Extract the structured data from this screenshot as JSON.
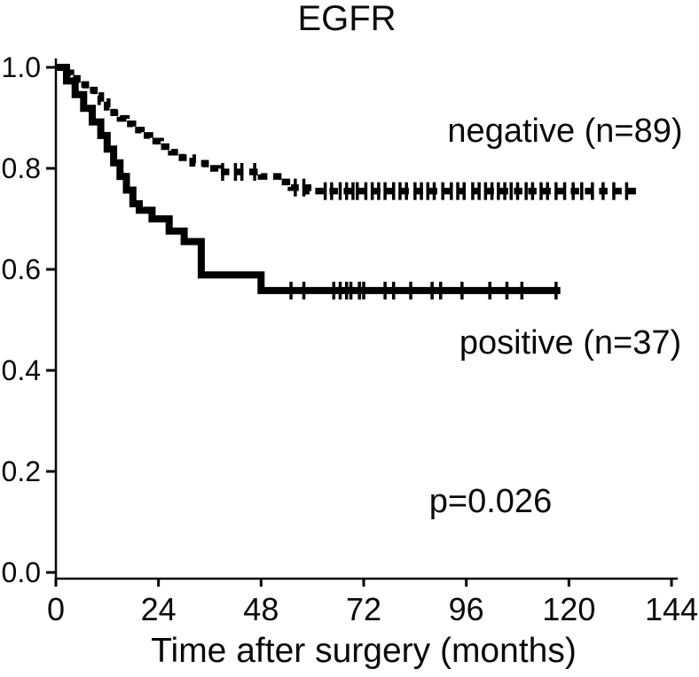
{
  "figure": {
    "title": "EGFR",
    "x_axis_label": "Time after surgery (months)",
    "p_value": "p=0.026"
  },
  "chart_data": {
    "type": "line",
    "subtype": "kaplan_meier_step",
    "title": "EGFR",
    "xlabel": "Time after surgery (months)",
    "ylabel": "",
    "xlim": [
      0,
      144
    ],
    "ylim": [
      0.0,
      1.0
    ],
    "xticks": [
      "0",
      "24",
      "48",
      "72",
      "96",
      "120",
      "144"
    ],
    "yticks": [
      "0.0",
      "0.2",
      "0.4",
      "0.6",
      "0.8",
      "1.0"
    ],
    "grid": false,
    "legend_position": "inline-annotations",
    "p_value_text": "p=0.026",
    "colors": {
      "line": "#000000",
      "text": "#0a0a0a",
      "background": "#ffffff"
    },
    "series": [
      {
        "name": "negative (n=89)",
        "line_style": "dashed",
        "steps": [
          [
            0,
            1.0
          ],
          [
            2,
            0.989
          ],
          [
            3.5,
            0.978
          ],
          [
            5,
            0.966
          ],
          [
            7,
            0.955
          ],
          [
            9,
            0.944
          ],
          [
            10.5,
            0.932
          ],
          [
            12,
            0.921
          ],
          [
            13.5,
            0.91
          ],
          [
            15,
            0.899
          ],
          [
            16.5,
            0.888
          ],
          [
            18,
            0.876
          ],
          [
            20,
            0.865
          ],
          [
            22,
            0.854
          ],
          [
            24.5,
            0.843
          ],
          [
            27,
            0.832
          ],
          [
            29.5,
            0.821
          ],
          [
            32,
            0.81
          ],
          [
            35,
            0.8
          ],
          [
            38,
            0.793
          ],
          [
            48,
            0.784
          ],
          [
            52,
            0.773
          ],
          [
            55,
            0.762
          ],
          [
            59,
            0.755
          ],
          [
            136,
            0.755
          ]
        ],
        "censor_times": [
          39,
          42,
          43.5,
          46.5,
          56,
          58,
          63,
          64.5,
          66.5,
          68,
          69.5,
          70.5,
          72.5,
          74,
          75.5,
          77,
          79,
          80.5,
          82,
          84,
          85.5,
          87,
          88.5,
          90.5,
          92.5,
          94,
          95.5,
          97.5,
          99,
          100.5,
          102,
          103.5,
          105,
          106.5,
          108,
          110,
          111.5,
          113.5,
          115,
          117,
          119,
          121,
          123,
          125.5,
          128,
          130.5,
          133.5
        ]
      },
      {
        "name": "positive (n=37)",
        "line_style": "solid",
        "steps": [
          [
            0,
            1.0
          ],
          [
            2.5,
            0.973
          ],
          [
            4.5,
            0.946
          ],
          [
            6.5,
            0.919
          ],
          [
            8.5,
            0.892
          ],
          [
            10.5,
            0.865
          ],
          [
            12,
            0.838
          ],
          [
            13.5,
            0.811
          ],
          [
            15,
            0.784
          ],
          [
            16.5,
            0.757
          ],
          [
            18,
            0.73
          ],
          [
            19.5,
            0.717
          ],
          [
            22.5,
            0.7
          ],
          [
            26.5,
            0.676
          ],
          [
            30,
            0.655
          ],
          [
            34,
            0.589
          ],
          [
            48,
            0.558
          ],
          [
            118,
            0.558
          ]
        ],
        "censor_times": [
          55,
          58,
          65,
          66.5,
          68,
          69,
          71,
          72,
          77,
          79,
          83,
          88,
          90,
          95,
          101.5,
          105.5,
          109,
          117
        ]
      }
    ]
  }
}
